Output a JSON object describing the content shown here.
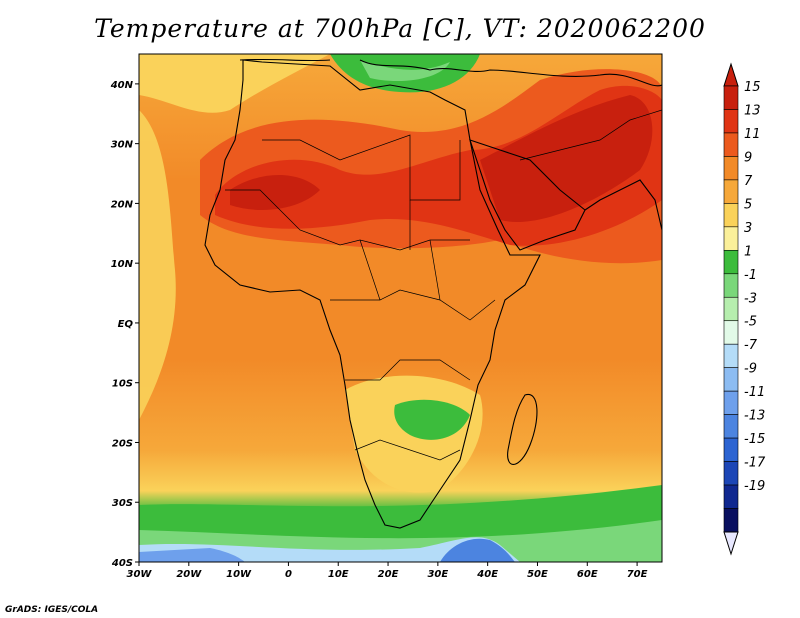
{
  "title": "Temperature at 700hPa [C], VT: 2020062200",
  "credit": "GrADS: IGES/COLA",
  "map": {
    "lon_range": [
      -30,
      75
    ],
    "lat_range": [
      -40,
      45
    ],
    "lon_ticks": [
      "30W",
      "20W",
      "10W",
      "0",
      "10E",
      "20E",
      "30E",
      "40E",
      "50E",
      "60E",
      "70E"
    ],
    "lat_ticks": [
      "40S",
      "30S",
      "20S",
      "10S",
      "EQ",
      "10N",
      "20N",
      "30N",
      "40N"
    ]
  },
  "colorbar": {
    "labels": [
      "15",
      "13",
      "11",
      "9",
      "7",
      "5",
      "3",
      "1",
      "-1",
      "-3",
      "-5",
      "-7",
      "-9",
      "-11",
      "-13",
      "-15",
      "-17",
      "-19"
    ],
    "colors": [
      "#c8200e",
      "#e03414",
      "#ec5a1e",
      "#f28a28",
      "#f6a83a",
      "#fad25a",
      "#fbf09a",
      "#3cbc3c",
      "#7ad77a",
      "#b6eeae",
      "#e2fae8",
      "#b4dcf8",
      "#8cbcf2",
      "#6ea0ec",
      "#4c84e0",
      "#2c64d2",
      "#1c46b6",
      "#102890",
      "#0a1060",
      "#e8e8ff"
    ],
    "top_color": "#c8200e",
    "bottom_color": "#e8e8ff"
  }
}
